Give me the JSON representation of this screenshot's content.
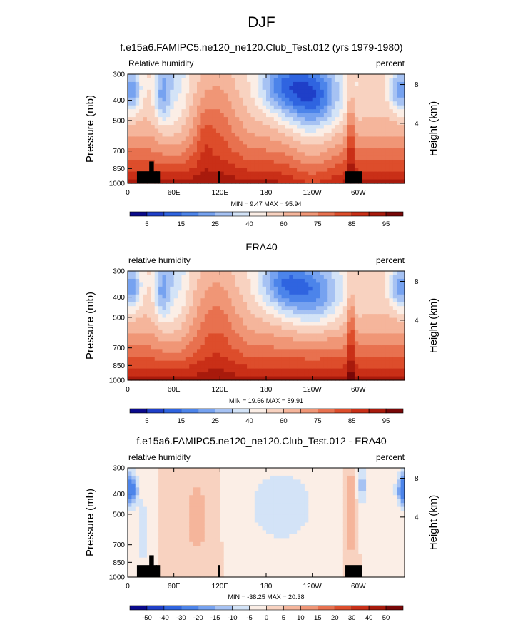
{
  "page_title": "DJF",
  "chart_data": [
    {
      "type": "contour",
      "title": "f.e15a6.FAMIPC5.ne120_ne120.Club_Test.012 (yrs 1979-1980)",
      "left_label": "Relative humidity",
      "right_label": "percent",
      "ylabel": "Pressure (mb)",
      "y2label": "Height (km)",
      "x_ticks": [
        "0",
        "60E",
        "120E",
        "180",
        "120W",
        "60W"
      ],
      "y_ticks": [
        "300",
        "400",
        "500",
        "700",
        "850",
        "1000"
      ],
      "y2_ticks": [
        "8",
        "4"
      ],
      "minmax": "MIN =  9.47  MAX = 95.94",
      "colorbar_labels": [
        "5",
        "15",
        "25",
        "40",
        "60",
        "75",
        "85",
        "95"
      ],
      "palette": "positive",
      "terrain": true
    },
    {
      "type": "contour",
      "title": "ERA40",
      "left_label": "relative humidity",
      "right_label": "percent",
      "ylabel": "Pressure (mb)",
      "y2label": "Height (km)",
      "x_ticks": [
        "0",
        "60E",
        "120E",
        "180",
        "120W",
        "60W"
      ],
      "y_ticks": [
        "300",
        "400",
        "500",
        "700",
        "850",
        "1000"
      ],
      "y2_ticks": [
        "8",
        "4"
      ],
      "minmax": "MIN =  19.66  MAX = 89.91",
      "colorbar_labels": [
        "5",
        "15",
        "25",
        "40",
        "60",
        "75",
        "85",
        "95"
      ],
      "palette": "positive",
      "terrain": false
    },
    {
      "type": "contour",
      "title": "f.e15a6.FAMIPC5.ne120_ne120.Club_Test.012 - ERA40",
      "left_label": "relative humidity",
      "right_label": "percent",
      "ylabel": "Pressure (mb)",
      "y2label": "Height (km)",
      "x_ticks": [
        "0",
        "60E",
        "120E",
        "180",
        "120W",
        "60W"
      ],
      "y_ticks": [
        "300",
        "400",
        "500",
        "700",
        "850",
        "1000"
      ],
      "y2_ticks": [
        "8",
        "4"
      ],
      "minmax": "MIN = -38.25  MAX = 20.38",
      "colorbar_labels": [
        "-50",
        "-40",
        "-30",
        "-20",
        "-15",
        "-10",
        "-5",
        "0",
        "5",
        "10",
        "15",
        "20",
        "30",
        "40",
        "50"
      ],
      "palette": "difference",
      "terrain": true
    }
  ],
  "colors": {
    "positive_scale": [
      "#0a0a8c",
      "#1f3fc8",
      "#2f64e0",
      "#4c84ea",
      "#76a2f0",
      "#a6c2f3",
      "#d3e3f7",
      "#fbeee6",
      "#f8d2c0",
      "#f5b59b",
      "#f09676",
      "#e8714f",
      "#dd4d2b",
      "#c92f17",
      "#a81a0c",
      "#780707"
    ],
    "difference_scale": [
      "#0a0a8c",
      "#1f3fc8",
      "#2f64e0",
      "#4c84ea",
      "#76a2f0",
      "#a6c2f3",
      "#d3e3f7",
      "#fbeee6",
      "#f8d2c0",
      "#f5b59b",
      "#f09676",
      "#e8714f",
      "#dd4d2b",
      "#c92f17",
      "#a81a0c",
      "#780707"
    ],
    "terrain": "#000000"
  }
}
